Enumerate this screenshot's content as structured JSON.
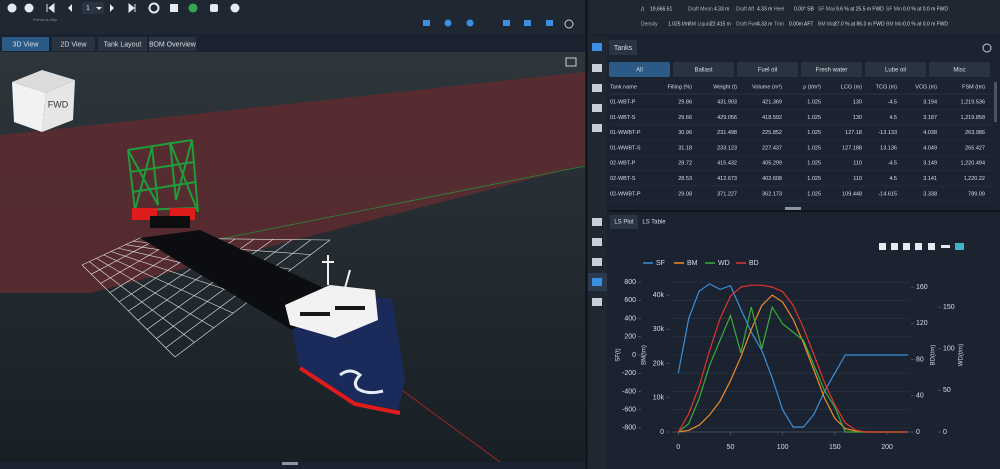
{
  "toolbar": {
    "page": "1",
    "hint": "Previous step"
  },
  "view_tabs": [
    "3D View",
    "2D View",
    "Tank Layout",
    "BDM Overview"
  ],
  "active_view_tab": 0,
  "view_cube": "FWD",
  "status": {
    "row1": [
      {
        "label": "Δ",
        "value": "19,666.51"
      },
      {
        "label": "Draft Mean",
        "value": "4.33 m"
      },
      {
        "label": "Draft Aft",
        "value": "4.33 m"
      },
      {
        "label": "Heel",
        "value": "0.00° SB"
      },
      {
        "label": "SF Max",
        "value": "9.6 % at 25.5 m FWD"
      },
      {
        "label": "SF Min",
        "value": "0.0 % at 0.0 m FWD"
      }
    ],
    "row2": [
      {
        "label": "Density",
        "value": "1.025 t/m³"
      },
      {
        "label": "GM Liquid",
        "value": "22.415 m"
      },
      {
        "label": "Draft Fwd",
        "value": "4.33 m"
      },
      {
        "label": "Trim",
        "value": "0.00m AFT"
      },
      {
        "label": "BM Max",
        "value": "27.0 % at 86.3 m FWD"
      },
      {
        "label": "BM Min",
        "value": "0.0 % at 0.0 m FWD"
      }
    ]
  },
  "tanks": {
    "title": "Tanks",
    "filters": [
      "All",
      "Ballast",
      "Fuel oil",
      "Fresh water",
      "Lube oil",
      "Misc"
    ],
    "active_filter": 0,
    "columns": [
      "Tank name",
      "Filling (%)",
      "Weight (t)",
      "Volume (m³)",
      "ρ (t/m³)",
      "LCG (m)",
      "TCG (m)",
      "VCG (m)",
      "FSM (tm)"
    ],
    "rows": [
      [
        "01-WBT-P",
        "29.86",
        "431.903",
        "421.369",
        "1.025",
        "130",
        "-4.5",
        "3.194",
        "1,219.536"
      ],
      [
        "01-WBT-S",
        "29.66",
        "429.056",
        "418.592",
        "1.025",
        "130",
        "4.5",
        "3.187",
        "1,219.858"
      ],
      [
        "01-WWBT-P",
        "30.96",
        "231.498",
        "225.852",
        "1.025",
        "127.18",
        "-13.133",
        "4.038",
        "263.986"
      ],
      [
        "01-WWBT-S",
        "31.18",
        "233.123",
        "227.437",
        "1.025",
        "127.188",
        "13.136",
        "4.049",
        "265.427"
      ],
      [
        "02-WBT-P",
        "28.72",
        "415.432",
        "405.299",
        "1.025",
        "110",
        "-4.5",
        "3.149",
        "1,220.494"
      ],
      [
        "02-WBT-S",
        "28.53",
        "412.673",
        "402.608",
        "1.025",
        "110",
        "4.5",
        "3.141",
        "1,220.22"
      ],
      [
        "02-WWBT-P",
        "29.08",
        "371.227",
        "362.173",
        "1.025",
        "109.448",
        "-14.615",
        "3.338",
        "789.09"
      ]
    ]
  },
  "plot_tabs": [
    "LS Plot",
    "LS Table"
  ],
  "active_plot_tab": 0,
  "chart_data": {
    "type": "line",
    "x": [
      0,
      10,
      20,
      30,
      40,
      50,
      60,
      70,
      80,
      90,
      100,
      110,
      120,
      130,
      140,
      150,
      160,
      170,
      180,
      190,
      200,
      210,
      220
    ],
    "xlim": [
      -6,
      222
    ],
    "xticks": [
      0,
      50,
      100,
      150,
      200
    ],
    "y_label": "SF(t)",
    "ylim": [
      -845,
      845
    ],
    "yticks": [
      -800,
      -600,
      -400,
      -200,
      0,
      200,
      400,
      600,
      800
    ],
    "y2_label": "BM(tm)",
    "y2lim": [
      0,
      45000
    ],
    "y2ticks": [
      0,
      {
        "value": 10000,
        "label": "10k"
      },
      {
        "value": 20000,
        "label": "20k"
      },
      {
        "value": 30000,
        "label": "30k"
      },
      {
        "value": 40000,
        "label": "40k"
      }
    ],
    "y3_label": "BD(t/m)",
    "y3lim": [
      0,
      170
    ],
    "y3ticks": [
      0,
      40,
      80,
      120,
      160
    ],
    "y4_label": "WD(t/m)",
    "y4lim": [
      0,
      185
    ],
    "y4ticks": [
      0,
      50,
      100,
      150
    ],
    "grid": true,
    "series": [
      {
        "name": "SF",
        "color": "#3b8fd8",
        "axis": "y",
        "values": [
          -200,
          400,
          700,
          780,
          720,
          760,
          500,
          250,
          50,
          -250,
          -600,
          -790,
          -790,
          -650,
          -400,
          -200,
          0,
          0,
          0,
          0,
          0,
          0,
          0
        ]
      },
      {
        "name": "BM",
        "color": "#f08c28",
        "axis": "y2",
        "values": [
          0,
          500,
          2000,
          5000,
          9000,
          15000,
          22000,
          30000,
          37000,
          40000,
          38000,
          33000,
          26000,
          18000,
          10000,
          4000,
          1000,
          300,
          0,
          0,
          0,
          0,
          0
        ]
      },
      {
        "name": "WD",
        "color": "#3caa3c",
        "axis": "y4",
        "values": [
          0,
          10,
          40,
          80,
          110,
          140,
          95,
          150,
          100,
          150,
          130,
          120,
          110,
          80,
          50,
          30,
          0,
          0,
          0,
          0,
          0,
          0,
          0
        ]
      },
      {
        "name": "BD",
        "color": "#e0352f",
        "axis": "y3",
        "values": [
          0,
          20,
          50,
          90,
          125,
          150,
          160,
          162,
          162,
          160,
          155,
          140,
          115,
          85,
          55,
          30,
          10,
          2,
          0,
          0,
          0,
          0,
          0
        ]
      }
    ]
  }
}
